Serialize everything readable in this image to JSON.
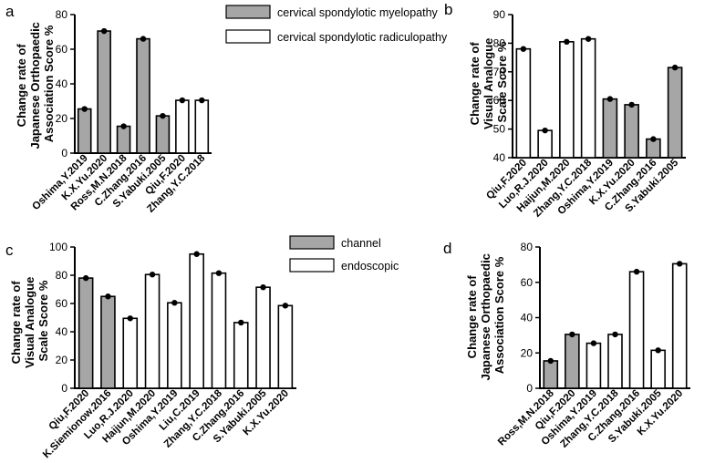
{
  "legends": [
    {
      "items": [
        {
          "label": "cervical spondylotic myelopathy",
          "color": "#a6a6a6"
        },
        {
          "label": "cervical spondylotic radiculopathy",
          "color": "#ffffff"
        }
      ]
    },
    {
      "items": [
        {
          "label": "channel",
          "color": "#a6a6a6"
        },
        {
          "label": "endoscopic",
          "color": "#ffffff"
        }
      ]
    }
  ],
  "chart_data": [
    {
      "panel": "a",
      "type": "bar",
      "ylabel": [
        "Change rate of",
        "Japanese Orthopaedic",
        "Association  Score %"
      ],
      "ylim": [
        0,
        80
      ],
      "yticks": [
        0,
        20,
        40,
        60,
        80
      ],
      "categories": [
        "Oshima,Y.2019",
        "K.X.Yu.2020",
        "Ross,M.N.2018",
        "C.Zhang.2016",
        "S.Yabuki.2005",
        "Qiu,F.2020",
        "Zhang,Y.C.2018"
      ],
      "values": [
        25.5,
        70.5,
        15.5,
        66,
        21.5,
        30.5,
        30.5
      ],
      "groups": [
        "gray",
        "gray",
        "gray",
        "gray",
        "gray",
        "white",
        "white"
      ]
    },
    {
      "panel": "b",
      "type": "bar",
      "ylabel": [
        "Change rate of",
        "Visual Analogue",
        "Scale Score %"
      ],
      "ylim": [
        40,
        90
      ],
      "yticks": [
        40,
        50,
        60,
        70,
        80,
        90
      ],
      "categories": [
        "Qiu,F.2020",
        "Luo,R.J.2020",
        "Haijun,M.2020",
        "Zhang,Y.C.2018",
        "Oshima,Y.2019",
        "K.X.Yu.2020",
        "C.Zhang.2016",
        "S.Yabuki.2005"
      ],
      "values": [
        78,
        49.5,
        80.5,
        81.5,
        60.5,
        58.5,
        46.5,
        71.5
      ],
      "groups": [
        "white",
        "white",
        "white",
        "white",
        "gray",
        "gray",
        "gray",
        "gray"
      ]
    },
    {
      "panel": "c",
      "type": "bar",
      "ylabel": [
        "Change rate of",
        "Visual Analogue",
        "Scale Score %"
      ],
      "ylim": [
        0,
        100
      ],
      "yticks": [
        0,
        20,
        40,
        60,
        80,
        100
      ],
      "categories": [
        "Qiu,F.2020",
        "K.Siemionow.2016",
        "Luo,R.J.2020",
        "Haijun,M.2020",
        "Oshima,Y.2019",
        "Liu,C.2019",
        "Zhang,Y.C.2018",
        "C.Zhang.2016",
        "S.Yabuki.2005",
        "K.X.Yu.2020"
      ],
      "values": [
        78,
        65,
        49.5,
        80.5,
        60.5,
        95,
        81.5,
        46.5,
        71.5,
        58.5
      ],
      "groups": [
        "gray",
        "gray",
        "white",
        "white",
        "white",
        "white",
        "white",
        "white",
        "white",
        "white"
      ]
    },
    {
      "panel": "d",
      "type": "bar",
      "ylabel": [
        "Change rate of",
        "Japanese Orthopaedic",
        "Association  Score %"
      ],
      "ylim": [
        0,
        80
      ],
      "yticks": [
        0,
        20,
        40,
        60,
        80
      ],
      "categories": [
        "Ross,M.N.2018",
        "Qiu,F.2020",
        "Oshima,Y.2019",
        "Zhang,Y.C.2018",
        "C.Zhang.2016",
        "S.Yabuki.2005",
        "K.X.Yu.2020"
      ],
      "values": [
        15.5,
        30.5,
        25.5,
        30.5,
        66,
        21.5,
        70.5
      ],
      "groups": [
        "gray",
        "gray",
        "white",
        "white",
        "white",
        "white",
        "white"
      ]
    }
  ]
}
